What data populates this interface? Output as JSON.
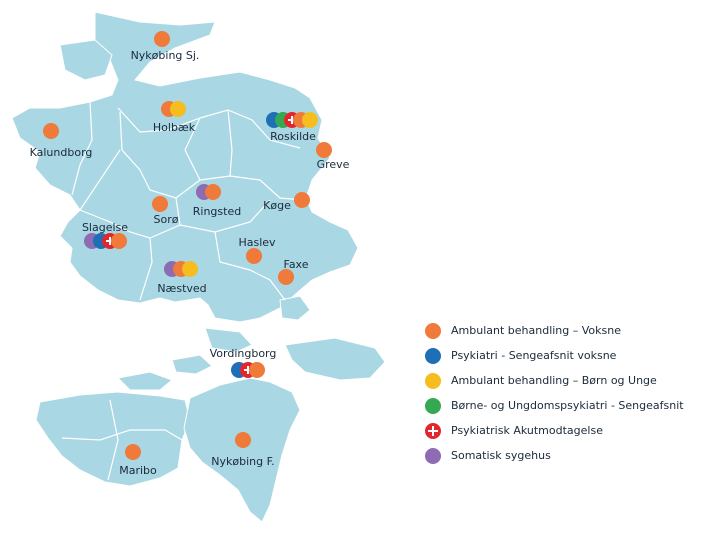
{
  "colors": {
    "land": "#a9d7e4",
    "border": "#ffffff",
    "water": "#ffffff",
    "orange": "#ef7a3a",
    "blue": "#1e6fb6",
    "yellow": "#f6bd1f",
    "green": "#34a853",
    "red": "#e3262e",
    "purple": "#8d6cb4"
  },
  "cities": [
    {
      "name": "Nykøbing Sj.",
      "markers": [
        "orange"
      ]
    },
    {
      "name": "Holbæk",
      "markers": [
        "orange",
        "yellow"
      ]
    },
    {
      "name": "Roskilde",
      "markers": [
        "blue",
        "green",
        "red-plus",
        "orange",
        "yellow"
      ]
    },
    {
      "name": "Kalundborg",
      "markers": [
        "orange"
      ]
    },
    {
      "name": "Greve",
      "markers": [
        "orange"
      ]
    },
    {
      "name": "Ringsted",
      "markers": [
        "purple",
        "orange"
      ]
    },
    {
      "name": "Sorø",
      "markers": [
        "orange"
      ]
    },
    {
      "name": "Køge",
      "markers": [
        "orange"
      ]
    },
    {
      "name": "Slagelse",
      "markers": [
        "purple",
        "blue",
        "red-plus",
        "orange"
      ]
    },
    {
      "name": "Haslev",
      "markers": [
        "orange"
      ]
    },
    {
      "name": "Faxe",
      "markers": [
        "orange"
      ]
    },
    {
      "name": "Næstved",
      "markers": [
        "purple",
        "orange",
        "yellow"
      ]
    },
    {
      "name": "Vordingborg",
      "markers": [
        "blue",
        "red-plus",
        "orange"
      ]
    },
    {
      "name": "Maribo",
      "markers": [
        "orange"
      ]
    },
    {
      "name": "Nykøbing F.",
      "markers": [
        "orange"
      ]
    }
  ],
  "legend": [
    {
      "label": "Ambulant behandling – Voksne",
      "color": "orange",
      "icon": "orange-dot-icon"
    },
    {
      "label": "Psykiatri - Sengeafsnit voksne",
      "color": "blue",
      "icon": "blue-dot-icon"
    },
    {
      "label": "Ambulant behandling – Børn og Unge",
      "color": "yellow",
      "icon": "yellow-dot-icon"
    },
    {
      "label": "Børne- og Ungdomspsykiatri - Sengeafsnit",
      "color": "green",
      "icon": "green-dot-icon"
    },
    {
      "label": "Psykiatrisk Akutmodtagelse",
      "color": "red",
      "icon": "red-plus-icon"
    },
    {
      "label": "Somatisk sygehus",
      "color": "purple",
      "icon": "purple-dot-icon"
    }
  ]
}
